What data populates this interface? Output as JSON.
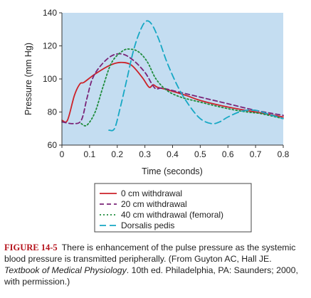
{
  "chart_data": {
    "type": "line",
    "xlabel": "Time (seconds)",
    "ylabel": "Pressure (mm Hg)",
    "xlim": [
      0,
      0.8
    ],
    "ylim": [
      60,
      140
    ],
    "x_ticks": [
      "0",
      "0.1",
      "0.2",
      "0.3",
      "0.4",
      "0.5",
      "0.6",
      "0.7",
      "0.8"
    ],
    "y_ticks": [
      "60",
      "80",
      "100",
      "120",
      "140"
    ],
    "grid": false,
    "legend_position": "bottom",
    "background_color": "#c4ddf1",
    "series": [
      {
        "name": "0 cm withdrawal",
        "color": "#cc2229",
        "dash": "solid",
        "x": [
          0,
          0.02,
          0.045,
          0.065,
          0.08,
          0.12,
          0.17,
          0.21,
          0.25,
          0.29,
          0.315,
          0.33,
          0.345,
          0.38,
          0.45,
          0.5,
          0.6,
          0.7,
          0.8
        ],
        "y": [
          75,
          75,
          90,
          97,
          98,
          103,
          108,
          110,
          108.5,
          101,
          95,
          96.5,
          95,
          93.5,
          90,
          87,
          83,
          80,
          77
        ]
      },
      {
        "name": "20 cm withdrawal",
        "color": "#7a2478",
        "dash": "dash",
        "x": [
          0,
          0.04,
          0.07,
          0.09,
          0.11,
          0.14,
          0.18,
          0.22,
          0.26,
          0.3,
          0.325,
          0.34,
          0.36,
          0.4,
          0.5,
          0.6,
          0.7,
          0.8
        ],
        "y": [
          74,
          73,
          75,
          88,
          100,
          108,
          114,
          115,
          111,
          104,
          97,
          94,
          94.5,
          93,
          89,
          85,
          81,
          78
        ]
      },
      {
        "name": "40 cm withdrawal (femoral)",
        "color": "#1f8c3c",
        "dash": "dot",
        "x": [
          0.07,
          0.09,
          0.12,
          0.15,
          0.18,
          0.22,
          0.25,
          0.28,
          0.31,
          0.34,
          0.38,
          0.43,
          0.5,
          0.6,
          0.67,
          0.72,
          0.8
        ],
        "y": [
          73,
          72,
          80,
          96,
          110,
          117,
          118,
          116,
          110,
          100,
          93,
          89,
          86,
          82,
          80,
          79,
          76
        ]
      },
      {
        "name": "Dorsalis pedis",
        "color": "#17a8c4",
        "dash": "longdash",
        "x": [
          0.17,
          0.19,
          0.21,
          0.235,
          0.26,
          0.285,
          0.305,
          0.325,
          0.35,
          0.38,
          0.42,
          0.46,
          0.5,
          0.54,
          0.57,
          0.6,
          0.65,
          0.7,
          0.75,
          0.8
        ],
        "y": [
          69,
          70,
          82,
          100,
          118,
          130,
          135,
          133,
          124,
          110,
          95,
          84,
          76,
          73,
          74,
          77,
          80.5,
          81,
          78.5,
          76
        ]
      }
    ]
  },
  "caption": {
    "figure_label": "FIGURE 14-5",
    "text": "There is enhancement of the pulse pressure as the systemic blood pressure is transmitted peripherally. (From Guyton AC, Hall JE. ",
    "book_title": "Textbook of Medical Physiology",
    "text_end": ". 10th ed. Philadelphia, PA: Saunders; 2000, with permission.)"
  }
}
